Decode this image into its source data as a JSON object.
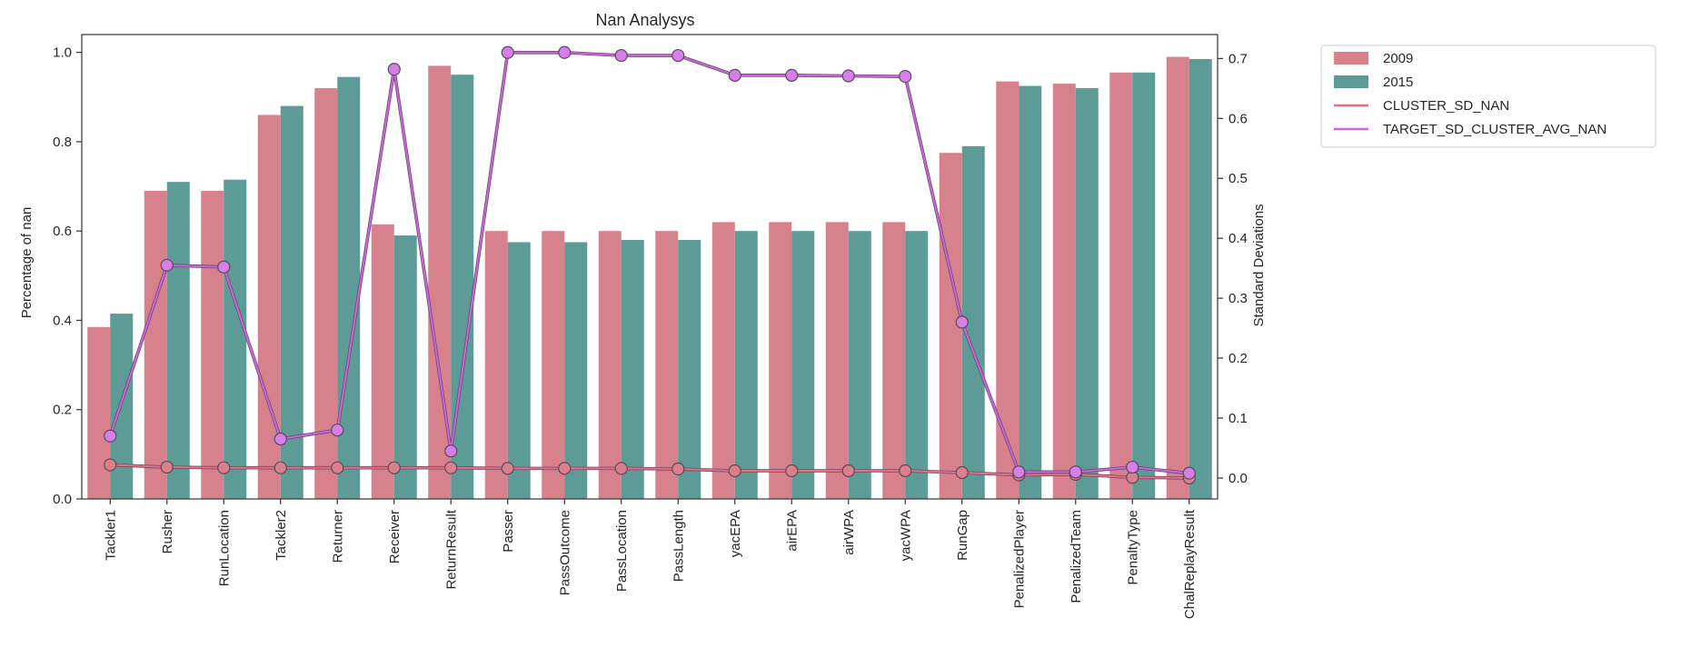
{
  "chart_data": {
    "type": "bar",
    "title": "Nan Analysys",
    "xlabel": "",
    "ylabel": "Percentage of nan",
    "y2label": "Standard Deviations",
    "ylim": [
      0.0,
      1.04
    ],
    "y2lim": [
      -0.035,
      0.74
    ],
    "yticks": [
      0.0,
      0.2,
      0.4,
      0.6,
      0.8,
      1.0
    ],
    "y2ticks": [
      0.0,
      0.1,
      0.2,
      0.3,
      0.4,
      0.5,
      0.6,
      0.7
    ],
    "ytick_labels": [
      "0.0",
      "0.2",
      "0.4",
      "0.6",
      "0.8",
      "1.0"
    ],
    "y2tick_labels": [
      "0.0",
      "0.1",
      "0.2",
      "0.3",
      "0.4",
      "0.5",
      "0.6",
      "0.7"
    ],
    "categories": [
      "Tackler1",
      "Rusher",
      "RunLocation",
      "Tackler2",
      "Returner",
      "Receiver",
      "ReturnResult",
      "Passer",
      "PassOutcome",
      "PassLocation",
      "PassLength",
      "yacEPA",
      "airEPA",
      "airWPA",
      "yacWPA",
      "RunGap",
      "PenalizedPlayer",
      "PenalizedTeam",
      "PenaltyType",
      "ChalReplayResult"
    ],
    "series": [
      {
        "name": "2009",
        "kind": "bar",
        "axis": "left",
        "color": "#d6818c",
        "values": [
          0.385,
          0.69,
          0.69,
          0.86,
          0.92,
          0.615,
          0.97,
          0.6,
          0.6,
          0.6,
          0.6,
          0.62,
          0.62,
          0.62,
          0.62,
          0.775,
          0.935,
          0.93,
          0.955,
          0.99
        ]
      },
      {
        "name": "2015",
        "kind": "bar",
        "axis": "left",
        "color": "#5d9b96",
        "values": [
          0.415,
          0.71,
          0.715,
          0.88,
          0.945,
          0.59,
          0.95,
          0.575,
          0.575,
          0.58,
          0.58,
          0.6,
          0.6,
          0.6,
          0.6,
          0.79,
          0.925,
          0.92,
          0.955,
          0.985
        ]
      },
      {
        "name": "CLUSTER_SD_NAN",
        "kind": "line",
        "axis": "right",
        "color": "#e8707c",
        "marker_fill": "#d9808a",
        "values": [
          0.022,
          0.018,
          0.017,
          0.017,
          0.017,
          0.017,
          0.017,
          0.016,
          0.016,
          0.016,
          0.015,
          0.012,
          0.012,
          0.012,
          0.012,
          0.009,
          0.005,
          0.006,
          0.001,
          0.0
        ]
      },
      {
        "name": "TARGET_SD_CLUSTER_AVG_NAN",
        "kind": "line",
        "axis": "right",
        "color": "#cc66dd",
        "marker_fill": "#d67fe8",
        "values": [
          0.07,
          0.355,
          0.352,
          0.065,
          0.08,
          0.682,
          0.045,
          0.71,
          0.71,
          0.705,
          0.705,
          0.672,
          0.672,
          0.671,
          0.67,
          0.26,
          0.01,
          0.01,
          0.018,
          0.008
        ]
      }
    ],
    "legend_position": "outside-right",
    "grid": false
  }
}
